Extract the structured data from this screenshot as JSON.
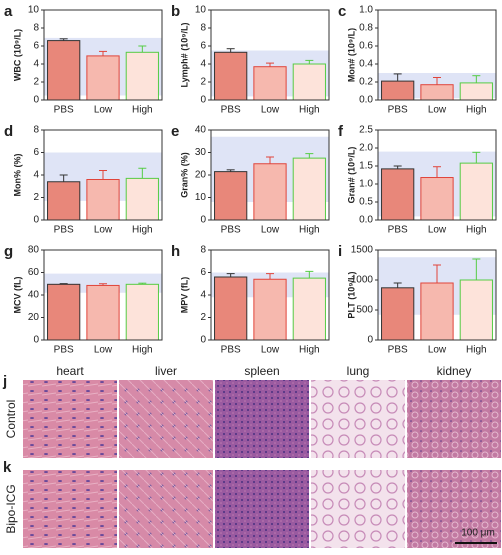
{
  "chart_data": [
    {
      "type": "bar",
      "label": "a",
      "ylabel": "WBC (10⁹/L)",
      "categories": [
        "PBS",
        "Low",
        "High"
      ],
      "values": [
        6.6,
        4.9,
        5.3
      ],
      "errors": [
        0.2,
        0.5,
        0.7
      ],
      "reference_range": [
        0.5,
        6.9
      ],
      "ylim": [
        0,
        10
      ],
      "yticks": [
        0,
        2,
        4,
        6,
        8,
        10
      ],
      "colors": [
        "#e8877a",
        "#f6b8ae",
        "#fde3da"
      ],
      "edge_colors": [
        "#333333",
        "#e0443a",
        "#55cc44"
      ]
    },
    {
      "type": "bar",
      "label": "b",
      "ylabel": "Lymph# (10⁹/L)",
      "categories": [
        "PBS",
        "Low",
        "High"
      ],
      "values": [
        5.3,
        3.7,
        4.0
      ],
      "errors": [
        0.4,
        0.4,
        0.4
      ],
      "reference_range": [
        0.4,
        5.5
      ],
      "ylim": [
        0,
        10
      ],
      "yticks": [
        0,
        2,
        4,
        6,
        8,
        10
      ],
      "colors": [
        "#e8877a",
        "#f6b8ae",
        "#fde3da"
      ],
      "edge_colors": [
        "#333333",
        "#e0443a",
        "#55cc44"
      ]
    },
    {
      "type": "bar",
      "label": "c",
      "ylabel": "Mon# (10⁹/L)",
      "categories": [
        "PBS",
        "Low",
        "High"
      ],
      "values": [
        0.21,
        0.17,
        0.19
      ],
      "errors": [
        0.08,
        0.08,
        0.08
      ],
      "reference_range": [
        0.02,
        0.3
      ],
      "ylim": [
        0,
        1
      ],
      "yticks": [
        {
          "value": 0,
          "label": "0.0"
        },
        0.2,
        0.4,
        0.6,
        0.8,
        {
          "value": 1,
          "label": "1.0"
        }
      ],
      "colors": [
        "#e8877a",
        "#f6b8ae",
        "#fde3da"
      ],
      "edge_colors": [
        "#333333",
        "#e0443a",
        "#55cc44"
      ]
    },
    {
      "type": "bar",
      "label": "d",
      "ylabel": "Mon% (%)",
      "categories": [
        "PBS",
        "Low",
        "High"
      ],
      "values": [
        3.4,
        3.6,
        3.7
      ],
      "errors": [
        0.6,
        0.8,
        0.9
      ],
      "reference_range": [
        1.7,
        6
      ],
      "ylim": [
        0,
        8
      ],
      "yticks": [
        0,
        2,
        4,
        6,
        8
      ],
      "colors": [
        "#e8877a",
        "#f6b8ae",
        "#fde3da"
      ],
      "edge_colors": [
        "#333333",
        "#e0443a",
        "#55cc44"
      ]
    },
    {
      "type": "bar",
      "label": "e",
      "ylabel": "Gran% (%)",
      "categories": [
        "PBS",
        "Low",
        "High"
      ],
      "values": [
        21.5,
        25,
        27.5
      ],
      "errors": [
        0.8,
        3,
        2
      ],
      "reference_range": [
        8,
        37
      ],
      "ylim": [
        0,
        40
      ],
      "yticks": [
        0,
        10,
        20,
        30,
        40
      ],
      "colors": [
        "#e8877a",
        "#f6b8ae",
        "#fde3da"
      ],
      "edge_colors": [
        "#333333",
        "#e0443a",
        "#55cc44"
      ]
    },
    {
      "type": "bar",
      "label": "f",
      "ylabel": "Gran# (10⁹/L)",
      "categories": [
        "PBS",
        "Low",
        "High"
      ],
      "values": [
        1.42,
        1.18,
        1.58
      ],
      "errors": [
        0.08,
        0.3,
        0.3
      ],
      "reference_range": [
        0.1,
        1.9
      ],
      "ylim": [
        0,
        2.5
      ],
      "yticks": [
        {
          "value": 0,
          "label": "0.0"
        },
        0.5,
        {
          "value": 1,
          "label": "1.0"
        },
        1.5,
        {
          "value": 2,
          "label": "2.0"
        },
        2.5
      ],
      "colors": [
        "#e8877a",
        "#f6b8ae",
        "#fde3da"
      ],
      "edge_colors": [
        "#333333",
        "#e0443a",
        "#55cc44"
      ]
    },
    {
      "type": "bar",
      "label": "g",
      "ylabel": "MCV (fL)",
      "categories": [
        "PBS",
        "Low",
        "High"
      ],
      "values": [
        49.5,
        48.5,
        49.5
      ],
      "errors": [
        0.6,
        1.5,
        1
      ],
      "reference_range": [
        42,
        59
      ],
      "ylim": [
        0,
        80
      ],
      "yticks": [
        0,
        20,
        40,
        60,
        80
      ],
      "colors": [
        "#e8877a",
        "#f6b8ae",
        "#fde3da"
      ],
      "edge_colors": [
        "#333333",
        "#e0443a",
        "#55cc44"
      ]
    },
    {
      "type": "bar",
      "label": "h",
      "ylabel": "MPV (fL)",
      "categories": [
        "PBS",
        "Low",
        "High"
      ],
      "values": [
        5.6,
        5.4,
        5.5
      ],
      "errors": [
        0.3,
        0.5,
        0.6
      ],
      "reference_range": [
        3.8,
        6
      ],
      "ylim": [
        0,
        8
      ],
      "yticks": [
        0,
        2,
        4,
        6,
        8
      ],
      "colors": [
        "#e8877a",
        "#f6b8ae",
        "#fde3da"
      ],
      "edge_colors": [
        "#333333",
        "#e0443a",
        "#55cc44"
      ]
    },
    {
      "type": "bar",
      "label": "i",
      "ylabel": "PLT (10⁹/L)",
      "categories": [
        "PBS",
        "Low",
        "High"
      ],
      "values": [
        870,
        950,
        1000
      ],
      "errors": [
        80,
        300,
        350
      ],
      "reference_range": [
        420,
        1380
      ],
      "ylim": [
        0,
        1500
      ],
      "yticks": [
        0,
        500,
        1000,
        1500
      ],
      "colors": [
        "#e8877a",
        "#f6b8ae",
        "#fde3da"
      ],
      "edge_colors": [
        "#333333",
        "#e0443a",
        "#55cc44"
      ]
    }
  ],
  "histology": {
    "panel_top": "j",
    "panel_bottom": "k",
    "columns": [
      "heart",
      "liver",
      "spleen",
      "lung",
      "kidney"
    ],
    "rows": [
      "Control",
      "Bipo-ICG"
    ],
    "scale_bar": "100 μm"
  }
}
